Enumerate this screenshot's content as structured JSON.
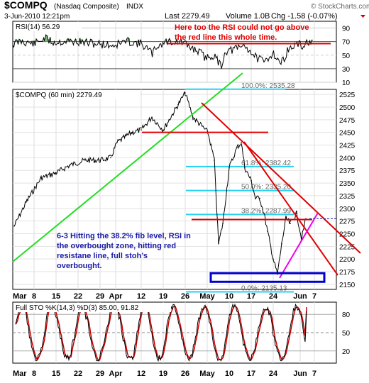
{
  "header": {
    "symbol": "$COMPQ",
    "name": "(Nasdaq Composite)",
    "exchange": "INDX",
    "datetime": "3-Jun-2010 12:21pm",
    "last": "Last 2279.49",
    "volume": "Volume 1.0B",
    "change": "Chg -1.58 (-0.07%)",
    "credit": "© StockCharts.com"
  },
  "colors": {
    "annotation_red": "#e00000",
    "annotation_blue": "#1a1aa6",
    "fib_cyan": "#29d0f0",
    "trend_green": "#22dd22",
    "trend_magenta": "#ee00ee",
    "stoch_k": "#000000",
    "stoch_d": "#cc0000"
  },
  "chart_data": [
    {
      "type": "line",
      "panel": "rsi",
      "label": "RSI(14) 56.29",
      "ylim": [
        10,
        100
      ],
      "yticks": [
        10,
        30,
        50,
        70,
        90
      ],
      "reference_lines": [
        30,
        70
      ],
      "annotation": "Here too the RSI could not go above the red line this whole time.",
      "resistance_value": 67,
      "last_value": 56.29
    },
    {
      "type": "line",
      "panel": "price",
      "label": "$COMPQ (60 min) 2279.49",
      "ylim": [
        2140,
        2535
      ],
      "yticks": [
        2150,
        2175,
        2200,
        2225,
        2250,
        2275,
        2300,
        2325,
        2350,
        2375,
        2400,
        2425,
        2450,
        2475,
        2500,
        2525
      ],
      "x": [
        "Mar 1",
        "Mar 5",
        "Mar 10",
        "Mar 15",
        "Mar 19",
        "Mar 24",
        "Mar 29",
        "Apr 1",
        "Apr 5",
        "Apr 9",
        "Apr 12",
        "Apr 15",
        "Apr 19",
        "Apr 23",
        "Apr 26",
        "Apr 28",
        "May 3",
        "May 5",
        "May 6",
        "May 7",
        "May 10",
        "May 12",
        "May 13",
        "May 14",
        "May 17",
        "May 18",
        "May 19",
        "May 20",
        "May 21",
        "May 24",
        "May 25",
        "May 26",
        "May 27",
        "May 28",
        "Jun 1",
        "Jun 2",
        "Jun 3"
      ],
      "values": [
        2265,
        2315,
        2360,
        2370,
        2385,
        2395,
        2395,
        2400,
        2430,
        2450,
        2455,
        2480,
        2455,
        2505,
        2528,
        2480,
        2450,
        2395,
        2230,
        2270,
        2380,
        2420,
        2430,
        2380,
        2355,
        2320,
        2320,
        2290,
        2255,
        2200,
        2170,
        2230,
        2280,
        2270,
        2290,
        2240,
        2279.49
      ],
      "fib_levels": [
        {
          "label": "100.0%: 2535.28",
          "value": 2535.28
        },
        {
          "label": "61.8%: 2382.42",
          "value": 2382.42
        },
        {
          "label": "50.0%: 2335.20",
          "value": 2335.2
        },
        {
          "label": "38.2%: 2287.99",
          "value": 2287.99
        },
        {
          "label": "0.0%: 2135.13",
          "value": 2135.13
        }
      ],
      "annotation": "6-3 Hitting the 38.2% fib level, RSI in the overbought zone, hitting red resistane line, full stoh's overbought.",
      "last_value": 2279.49
    },
    {
      "type": "line",
      "panel": "stochastics",
      "label": "Full STO %K(14,3) %D(3) 85.00, 91.82",
      "ylim": [
        0,
        100
      ],
      "yticks": [
        20,
        50,
        80
      ],
      "reference_lines": [
        20,
        80
      ],
      "series": [
        {
          "name": "%K(14,3)",
          "last_value": 85.0
        },
        {
          "name": "%D(3)",
          "last_value": 91.82
        }
      ]
    }
  ],
  "x_axis": {
    "labels": [
      "Mar",
      "8",
      "15",
      "22",
      "29",
      "Apr",
      "12",
      "19",
      "26",
      "May",
      "10",
      "17",
      "24",
      "Jun",
      "7"
    ]
  }
}
